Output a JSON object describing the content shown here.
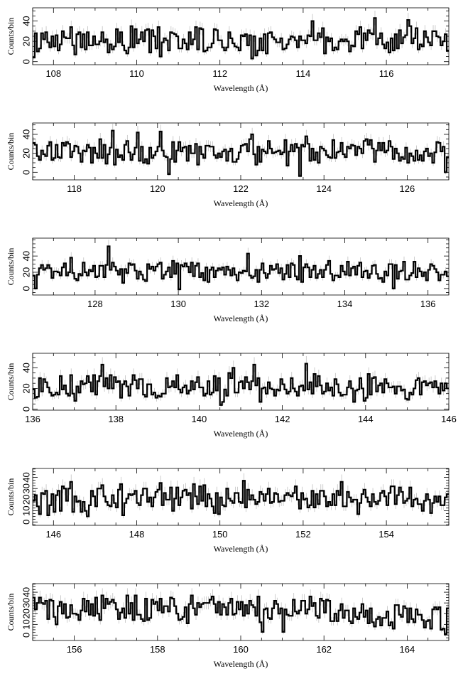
{
  "chart_data": [
    {
      "type": "line",
      "xlabel": "Wavelength (Å)",
      "ylabel": "Counts/bin",
      "xlim": [
        107.5,
        117.5
      ],
      "ylim": [
        -3,
        53
      ],
      "xticks": [
        108,
        110,
        112,
        114,
        116
      ],
      "yticks": [
        0,
        20,
        40
      ],
      "bin_width": 0.05,
      "peaks": [
        [
          108.4,
          34
        ],
        [
          111.4,
          34
        ],
        [
          114.2,
          40
        ],
        [
          115.7,
          43
        ],
        [
          116.5,
          41
        ]
      ],
      "dips": [
        [
          107.55,
          4
        ],
        [
          110.6,
          5
        ],
        [
          112.8,
          3
        ]
      ]
    },
    {
      "type": "line",
      "xlabel": "Wavelength (Å)",
      "ylabel": "Counts/bin",
      "xlim": [
        117,
        127
      ],
      "ylim": [
        -8,
        52
      ],
      "xticks": [
        118,
        120,
        122,
        124,
        126
      ],
      "yticks": [
        0,
        20,
        40
      ],
      "bin_width": 0.05,
      "peaks": [
        [
          118.9,
          44
        ],
        [
          119.5,
          42
        ],
        [
          120.1,
          43
        ],
        [
          122.3,
          40
        ],
        [
          123.6,
          38
        ]
      ],
      "dips": [
        [
          120.3,
          -2
        ],
        [
          123.4,
          -4
        ],
        [
          126.9,
          0
        ]
      ]
    },
    {
      "type": "line",
      "xlabel": "Wavelength (Å)",
      "ylabel": "Counts/bin",
      "xlim": [
        126.5,
        136.5
      ],
      "ylim": [
        -8,
        62
      ],
      "xticks": [
        128,
        130,
        132,
        134,
        136
      ],
      "yticks": [
        0,
        20,
        40
      ],
      "bin_width": 0.05,
      "peaks": [
        [
          128.3,
          52
        ],
        [
          131.7,
          43
        ],
        [
          132.9,
          40
        ],
        [
          127.4,
          38
        ]
      ],
      "dips": [
        [
          126.6,
          0
        ],
        [
          130.0,
          -1
        ],
        [
          135.2,
          0
        ]
      ]
    },
    {
      "type": "line",
      "xlabel": "Wavelength (Å)",
      "ylabel": "Counts/bin",
      "xlim": [
        136,
        146
      ],
      "ylim": [
        -1,
        54
      ],
      "xticks": [
        136,
        138,
        140,
        142,
        144,
        146
      ],
      "yticks": [
        0,
        20,
        40
      ],
      "bin_width": 0.05,
      "peaks": [
        [
          137.7,
          43
        ],
        [
          141.3,
          43
        ],
        [
          142.6,
          44
        ],
        [
          140.8,
          40
        ]
      ],
      "dips": [
        [
          137.0,
          8
        ],
        [
          140.5,
          4
        ],
        [
          145.0,
          9
        ]
      ]
    },
    {
      "type": "line",
      "xlabel": "Wavelength (Å)",
      "ylabel": "Counts/bin",
      "xlim": [
        145.5,
        155.5
      ],
      "ylim": [
        -3,
        48
      ],
      "xticks": [
        146,
        148,
        150,
        152,
        154
      ],
      "yticks": [
        0,
        10,
        20,
        30,
        40
      ],
      "bin_width": 0.05,
      "peaks": [
        [
          146.4,
          36
        ],
        [
          150.6,
          37
        ],
        [
          152.9,
          36
        ],
        [
          148.6,
          35
        ]
      ],
      "dips": [
        [
          146.8,
          5
        ],
        [
          147.7,
          6
        ],
        [
          155.1,
          8
        ]
      ]
    },
    {
      "type": "line",
      "xlabel": "Wavelength (Å)",
      "ylabel": "Counts/bin",
      "xlim": [
        155,
        165
      ],
      "ylim": [
        -5,
        48
      ],
      "xticks": [
        156,
        158,
        160,
        162,
        164
      ],
      "yticks": [
        0,
        10,
        20,
        30,
        40
      ],
      "bin_width": 0.05,
      "peaks": [
        [
          155.2,
          35
        ],
        [
          156.5,
          35
        ],
        [
          158.3,
          35
        ],
        [
          160.4,
          36
        ],
        [
          161.5,
          32
        ]
      ],
      "dips": [
        [
          160.5,
          3
        ],
        [
          161.0,
          3
        ],
        [
          164.9,
          1
        ]
      ]
    }
  ]
}
